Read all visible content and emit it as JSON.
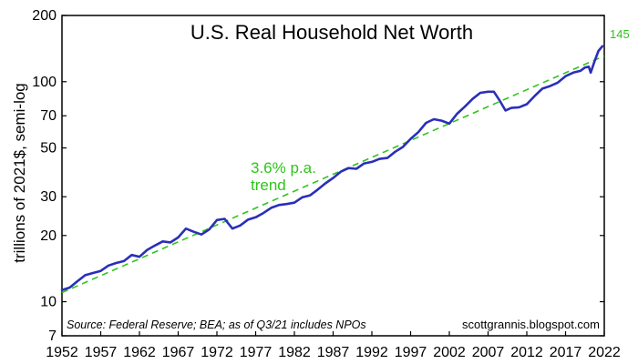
{
  "chart_data": {
    "type": "line",
    "title": "U.S. Real Household Net Worth",
    "ylabel": "trillions of 2021$, semi-log",
    "xlabel": "",
    "y_scale": "log",
    "ylim": [
      7,
      200
    ],
    "xlim": [
      1952,
      2022
    ],
    "y_ticks": [
      7,
      10,
      20,
      30,
      50,
      70,
      100,
      200
    ],
    "x_ticks": [
      1952,
      1957,
      1962,
      1967,
      1972,
      1977,
      1982,
      1987,
      1992,
      1997,
      2002,
      2007,
      2012,
      2017,
      2022
    ],
    "grid": false,
    "colors": {
      "series": "#2a2fb8",
      "trend": "#2ec51a"
    },
    "series": [
      {
        "x": [
          1952,
          1953,
          1954,
          1955,
          1956,
          1957,
          1958,
          1959,
          1960,
          1961,
          1962,
          1963,
          1964,
          1965,
          1966,
          1967,
          1968,
          1969,
          1970,
          1971,
          1972,
          1973,
          1974,
          1975,
          1976,
          1977,
          1978,
          1979,
          1980,
          1981,
          1982,
          1983,
          1984,
          1985,
          1986,
          1987,
          1988,
          1989,
          1990,
          1991,
          1992,
          1993,
          1994,
          1995,
          1996,
          1997,
          1998,
          1999,
          2000,
          2001,
          2002,
          2003,
          2004,
          2005,
          2006,
          2007,
          2007.75,
          2008.5,
          2009.25,
          2010,
          2011,
          2012,
          2013,
          2014,
          2015,
          2016,
          2017,
          2018,
          2018.9,
          2019.5,
          2020,
          2020.25,
          2020.75,
          2021.25,
          2021.75
        ],
        "values": [
          11.3,
          11.6,
          12.4,
          13.2,
          13.5,
          13.8,
          14.6,
          15.0,
          15.3,
          16.3,
          16.0,
          17.2,
          18.0,
          18.8,
          18.6,
          19.6,
          21.5,
          20.8,
          20.2,
          21.3,
          23.5,
          23.8,
          21.5,
          22.2,
          23.6,
          24.2,
          25.3,
          26.7,
          27.5,
          27.8,
          28.2,
          29.8,
          30.4,
          32.3,
          34.5,
          36.5,
          39.0,
          40.5,
          40.2,
          42.5,
          43.2,
          44.6,
          45.0,
          48.0,
          50.5,
          55.0,
          59.0,
          65.0,
          67.5,
          66.5,
          64.5,
          71.5,
          77.0,
          83.5,
          89.0,
          90.0,
          90.0,
          82.0,
          74.0,
          76.0,
          76.5,
          79.0,
          86.0,
          93.0,
          95.5,
          99.0,
          106.0,
          110.0,
          112.0,
          116.0,
          117.0,
          110.0,
          124.0,
          138.0,
          145.0
        ]
      }
    ],
    "trend": {
      "rate": "3.6% p.a.",
      "start": [
        1952,
        11.0
      ],
      "end": [
        2022,
        131.0
      ]
    },
    "annotations": {
      "trend_line1": "3.6% p.a.",
      "trend_line2": "trend",
      "end_value": "145",
      "source": "Source: Federal Reserve; BEA; as of Q3/21 includes NPOs",
      "credit": "scottgrannis.blogspot.com"
    }
  }
}
